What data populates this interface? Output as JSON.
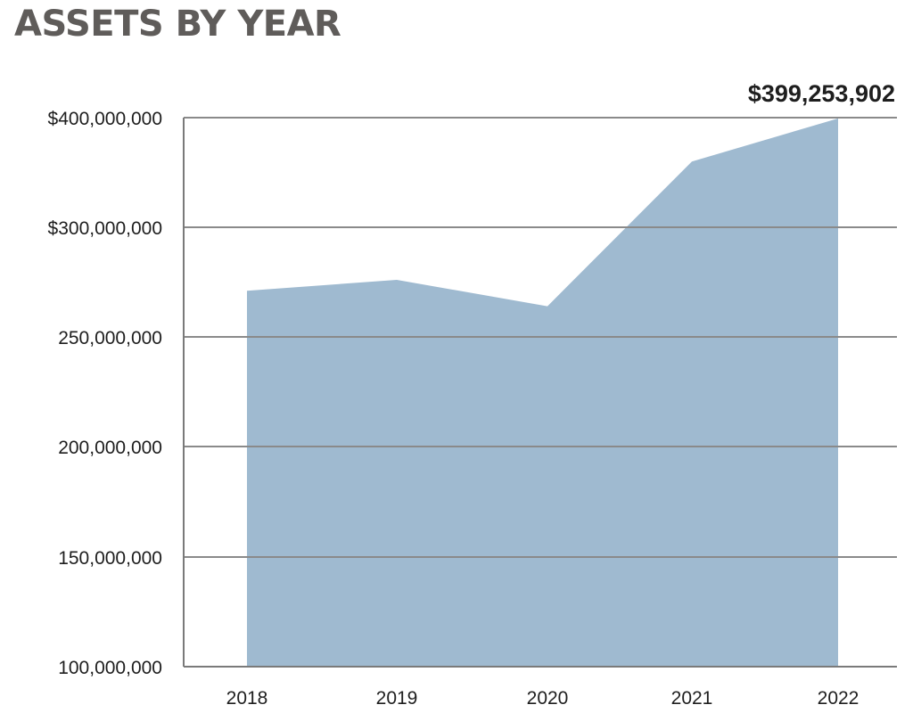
{
  "chart_data": {
    "type": "area",
    "title": "ASSETS BY YEAR",
    "xlabel": "",
    "ylabel": "",
    "categories": [
      "2018",
      "2019",
      "2020",
      "2021",
      "2022"
    ],
    "values": [
      271000000,
      276000000,
      264000000,
      360000000,
      399253902
    ],
    "y_tick_values": [
      100000000,
      150000000,
      200000000,
      250000000,
      300000000,
      400000000
    ],
    "y_tick_labels": [
      "100,000,000",
      "150,000,000",
      "200,000,000",
      "250,000,000",
      "$300,000,000",
      "$400,000,000"
    ],
    "annotation": {
      "category": "2022",
      "text": "$399,253,902"
    },
    "grid": true,
    "legend": "none",
    "colors": {
      "fill": "#9fbad0",
      "grid": "#8a8a8a",
      "axis": "#7a7a7a",
      "title": "#5f5c5a"
    }
  }
}
